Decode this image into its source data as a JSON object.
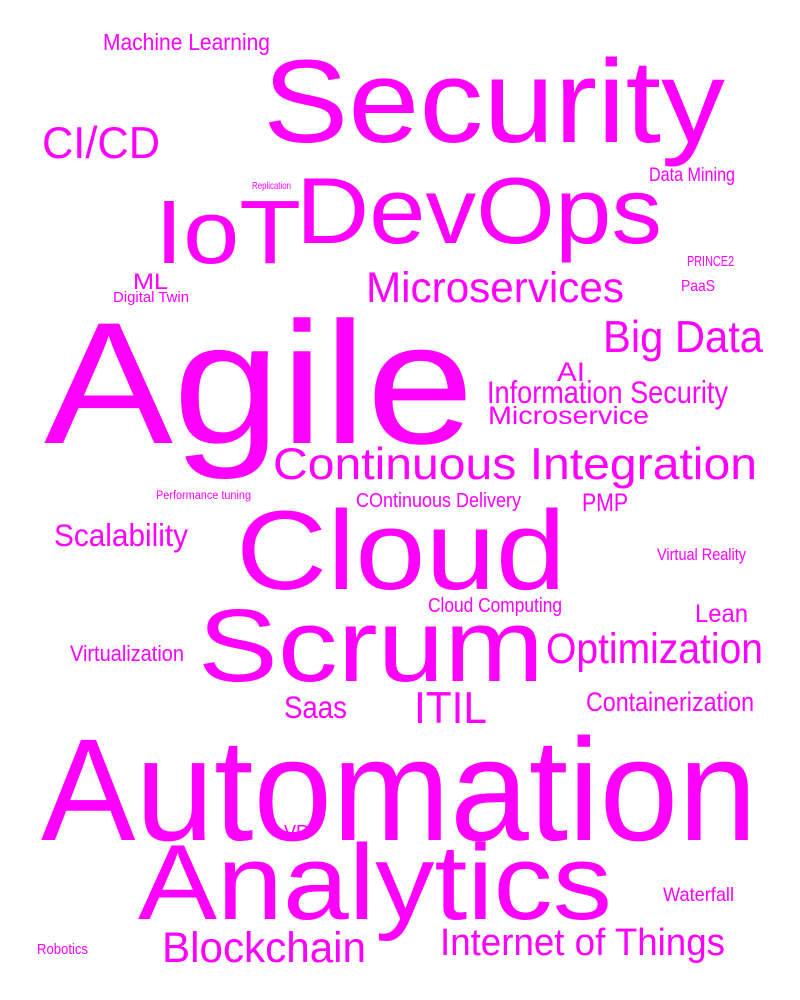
{
  "word_color": "#ff00ff",
  "background_color": "#ffffff",
  "words": [
    "Security",
    "Agile",
    "Automation",
    "Cloud",
    "Scrum",
    "Analytics",
    "DevOps",
    "IoT",
    "Continuous Integration",
    "Microservices",
    "Big Data",
    "Optimization",
    "CI/CD",
    "Blockchain",
    "Internet of Things",
    "Information Security",
    "ITIL",
    "Scalability",
    "Microservice",
    "Containerization",
    "Machine Learning",
    "Saas",
    "AI",
    "Lean",
    "Virtualization",
    "COntinuous Delivery",
    "Cloud Computing",
    "Data Mining",
    "PMP",
    "ML",
    "VR",
    "Waterfall",
    "Virtual Reality",
    "PRINCE2",
    "PaaS",
    "Digital Twin",
    "Robotics",
    "Performance tuning",
    "Replication"
  ]
}
